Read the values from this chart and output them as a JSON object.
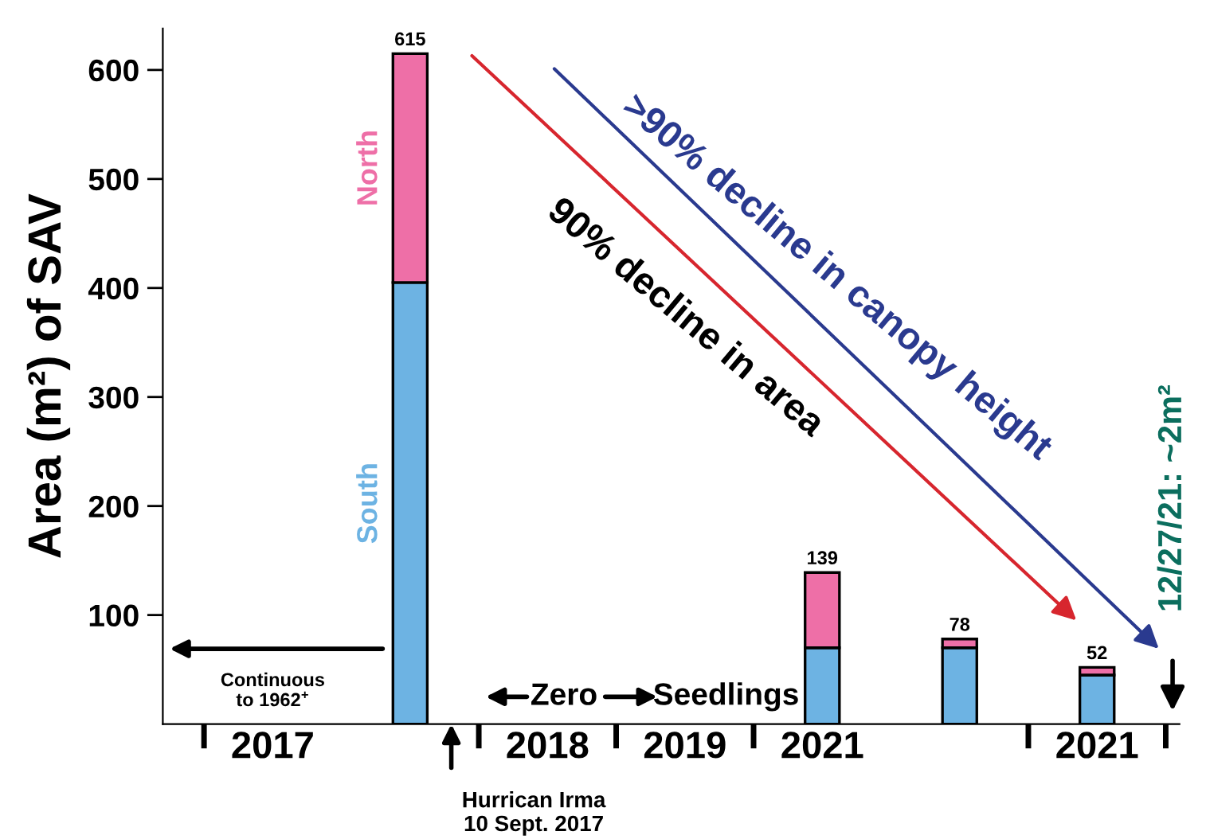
{
  "chart_data": {
    "type": "bar",
    "stacked": true,
    "ylabel": "Area (m²) of SAV",
    "categories": [
      "2017",
      null,
      "2018",
      "2019",
      "2021",
      null,
      "2021"
    ],
    "series": [
      {
        "name": "South",
        "color": "#6db3e3",
        "values": [
          null,
          405,
          null,
          null,
          70,
          70,
          45
        ]
      },
      {
        "name": "North",
        "color": "#ee6fa7",
        "values": [
          null,
          210,
          null,
          null,
          69,
          8,
          7
        ]
      }
    ],
    "totals": [
      null,
      "615",
      null,
      null,
      "139",
      "78",
      "52"
    ],
    "ylim": [
      0,
      638
    ],
    "yticks": [
      100,
      200,
      300,
      400,
      500,
      600
    ],
    "grid": false,
    "legend": false,
    "annotations": [
      "90% decline in area",
      ">90% decline in canopy height",
      "12/27/21: ~2m²",
      "Continuous\nto 1962$^{+}$",
      "Zero",
      "Seedlings",
      "Hurrican Irma\n10 Sept. 2017"
    ]
  }
}
